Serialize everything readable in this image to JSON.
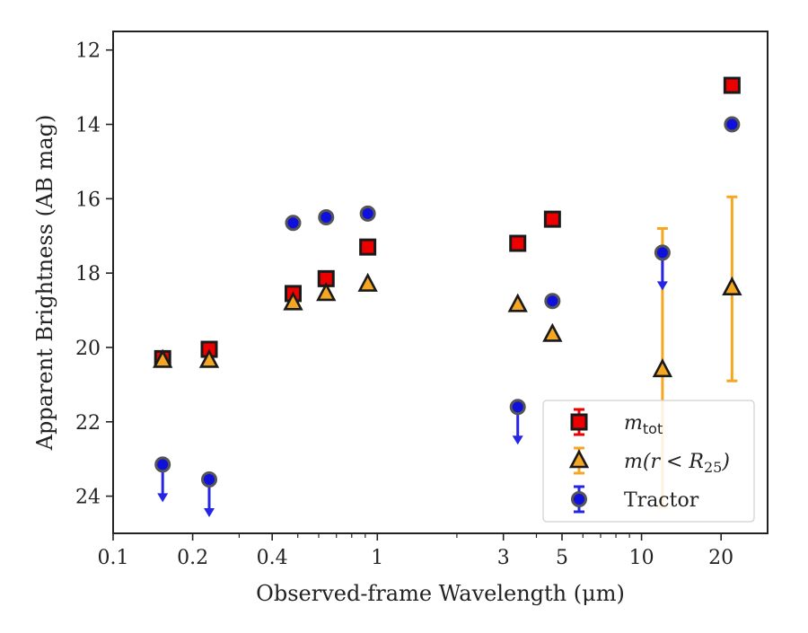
{
  "chart_data": {
    "type": "scatter",
    "xlabel": "Observed-frame Wavelength (μm)",
    "ylabel": "Apparent Brightness (AB mag)",
    "x_scale": "log",
    "xlim": [
      0.1,
      30
    ],
    "ylim": [
      25,
      11.5
    ],
    "y_inverted": true,
    "x_ticks": [
      0.1,
      0.2,
      0.4,
      1,
      3,
      5,
      10,
      20
    ],
    "x_tick_labels": [
      "0.1",
      "0.2",
      "0.4",
      "1",
      "3",
      "5",
      "10",
      "20"
    ],
    "y_ticks": [
      12,
      14,
      16,
      18,
      20,
      22,
      24
    ],
    "y_tick_labels": [
      "12",
      "14",
      "16",
      "18",
      "20",
      "22",
      "24"
    ],
    "grid": false,
    "legend_position": "lower-right",
    "series": [
      {
        "name_tex": [
          "m",
          "tot"
        ],
        "marker": "square",
        "color": "#ee0000",
        "points": [
          {
            "x": 0.154,
            "y": 20.3
          },
          {
            "x": 0.231,
            "y": 20.05
          },
          {
            "x": 0.48,
            "y": 18.55
          },
          {
            "x": 0.64,
            "y": 18.15
          },
          {
            "x": 0.92,
            "y": 17.3
          },
          {
            "x": 3.4,
            "y": 17.2
          },
          {
            "x": 4.6,
            "y": 16.55
          },
          {
            "x": 22.0,
            "y": 12.95
          }
        ]
      },
      {
        "name_tex": [
          "m(r < R",
          "25",
          ")"
        ],
        "marker": "triangle",
        "color": "#f5a623",
        "points": [
          {
            "x": 0.154,
            "y": 20.35
          },
          {
            "x": 0.231,
            "y": 20.35
          },
          {
            "x": 0.48,
            "y": 18.8
          },
          {
            "x": 0.64,
            "y": 18.55
          },
          {
            "x": 0.92,
            "y": 18.3
          },
          {
            "x": 3.4,
            "y": 18.85
          },
          {
            "x": 4.6,
            "y": 19.65
          },
          {
            "x": 12.0,
            "y": 20.6,
            "yerr_low": 16.8,
            "yerr_high": 24.3
          },
          {
            "x": 22.0,
            "y": 18.4,
            "yerr_low": 15.95,
            "yerr_high": 20.9
          }
        ]
      },
      {
        "name": "Tractor",
        "marker": "circle",
        "color": "#1010dd",
        "points": [
          {
            "x": 0.154,
            "y": 23.15,
            "upper_limit": true
          },
          {
            "x": 0.231,
            "y": 23.55,
            "upper_limit": true
          },
          {
            "x": 0.48,
            "y": 16.65
          },
          {
            "x": 0.64,
            "y": 16.5
          },
          {
            "x": 0.92,
            "y": 16.4
          },
          {
            "x": 3.4,
            "y": 21.6,
            "upper_limit": true
          },
          {
            "x": 4.6,
            "y": 18.75
          },
          {
            "x": 12.0,
            "y": 17.45,
            "upper_limit": true
          },
          {
            "x": 22.0,
            "y": 14.0
          }
        ]
      }
    ]
  }
}
